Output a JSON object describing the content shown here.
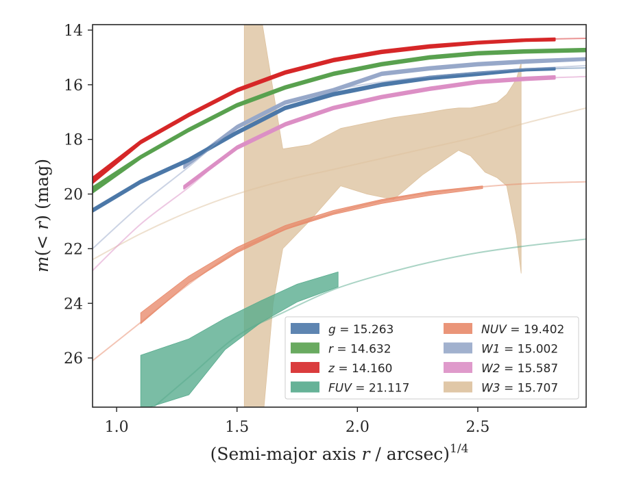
{
  "chart_data": {
    "type": "line",
    "title": "",
    "xlabel": "(Semi-major axis r / arcsec)^1/4",
    "ylabel": "m(< r) (mag)",
    "xlim": [
      0.9,
      2.95
    ],
    "ylim": [
      27.8,
      13.8
    ],
    "y_inverted": true,
    "grid": false,
    "legend_position": "lower-right",
    "x_ticks": [
      1.0,
      1.5,
      2.0,
      2.5
    ],
    "x_tick_labels": [
      "1.0",
      "1.5",
      "2.0",
      "2.5"
    ],
    "y_ticks": [
      14,
      16,
      18,
      20,
      22,
      24,
      26
    ],
    "y_tick_labels": [
      "14",
      "16",
      "18",
      "20",
      "22",
      "24",
      "26"
    ],
    "series": [
      {
        "name": "g",
        "value": "15.263",
        "color": "#4c78a8",
        "fit_x": [
          0.9,
          1.1,
          1.3,
          1.5,
          1.7,
          1.9,
          2.1,
          2.3,
          2.5,
          2.7,
          2.95
        ],
        "fit_y": [
          20.6,
          19.55,
          18.75,
          17.75,
          16.85,
          16.35,
          16.0,
          15.75,
          15.6,
          15.45,
          15.38
        ],
        "band_x": [
          0.9,
          1.1,
          1.3,
          1.5,
          1.7,
          1.9,
          2.1,
          2.3,
          2.5,
          2.7,
          2.82
        ],
        "band_lo": [
          20.55,
          19.5,
          18.7,
          17.7,
          16.8,
          16.3,
          15.95,
          15.7,
          15.55,
          15.42,
          15.38
        ],
        "band_hi": [
          20.65,
          19.6,
          18.8,
          17.8,
          16.9,
          16.4,
          16.05,
          15.8,
          15.65,
          15.48,
          15.45
        ]
      },
      {
        "name": "r",
        "value": "14.632",
        "color": "#59a14f",
        "fit_x": [
          0.9,
          1.1,
          1.3,
          1.5,
          1.7,
          1.9,
          2.1,
          2.3,
          2.5,
          2.7,
          2.95
        ],
        "fit_y": [
          19.85,
          18.65,
          17.65,
          16.75,
          16.1,
          15.6,
          15.25,
          15.0,
          14.85,
          14.78,
          14.72
        ],
        "band_x": [
          0.9,
          1.1,
          1.3,
          1.5,
          1.7,
          1.9,
          2.1,
          2.3,
          2.5,
          2.7,
          2.95
        ],
        "band_lo": [
          19.75,
          18.6,
          17.6,
          16.7,
          16.05,
          15.55,
          15.2,
          14.95,
          14.8,
          14.73,
          14.68
        ],
        "band_hi": [
          19.95,
          18.7,
          17.7,
          16.8,
          16.15,
          15.65,
          15.3,
          15.05,
          14.9,
          14.83,
          14.78
        ]
      },
      {
        "name": "z",
        "value": "14.160",
        "color": "#d62728",
        "fit_x": [
          0.9,
          1.1,
          1.3,
          1.5,
          1.7,
          1.9,
          2.1,
          2.3,
          2.5,
          2.7,
          2.95
        ],
        "fit_y": [
          19.5,
          18.1,
          17.1,
          16.2,
          15.55,
          15.1,
          14.8,
          14.6,
          14.45,
          14.35,
          14.3
        ],
        "band_x": [
          0.9,
          1.1,
          1.3,
          1.5,
          1.7,
          1.9,
          2.1,
          2.3,
          2.5,
          2.7,
          2.82
        ],
        "band_lo": [
          19.4,
          18.05,
          17.05,
          16.15,
          15.5,
          15.05,
          14.75,
          14.55,
          14.42,
          14.33,
          14.3
        ],
        "band_hi": [
          19.6,
          18.15,
          17.15,
          16.25,
          15.6,
          15.15,
          14.85,
          14.65,
          14.5,
          14.4,
          14.38
        ]
      },
      {
        "name": "FUV",
        "value": "21.117",
        "color": "#55aa8c",
        "fit_x": [
          1.1,
          1.3,
          1.5,
          1.7,
          1.9,
          2.1,
          2.3,
          2.5,
          2.7,
          2.95
        ],
        "fit_y": [
          28.2,
          26.7,
          25.2,
          24.3,
          23.5,
          22.95,
          22.5,
          22.15,
          21.9,
          21.65
        ],
        "band_x": [
          1.1,
          1.3,
          1.45,
          1.6,
          1.75,
          1.92
        ],
        "band_lo": [
          27.9,
          27.35,
          25.7,
          24.7,
          23.95,
          23.4
        ],
        "band_hi": [
          25.9,
          25.3,
          24.55,
          23.9,
          23.3,
          22.85
        ]
      },
      {
        "name": "NUV",
        "value": "19.402",
        "color": "#e8896a",
        "fit_x": [
          0.9,
          1.1,
          1.3,
          1.5,
          1.7,
          1.9,
          2.1,
          2.3,
          2.5,
          2.7,
          2.95
        ],
        "fit_y": [
          26.1,
          24.7,
          23.3,
          22.1,
          21.3,
          20.7,
          20.25,
          19.95,
          19.75,
          19.62,
          19.55
        ],
        "band_x": [
          1.1,
          1.3,
          1.5,
          1.7,
          1.9,
          2.1,
          2.3,
          2.52
        ],
        "band_lo": [
          24.75,
          23.25,
          22.15,
          21.3,
          20.75,
          20.35,
          20.05,
          19.8
        ],
        "band_hi": [
          24.35,
          23.0,
          21.95,
          21.15,
          20.6,
          20.2,
          19.9,
          19.7
        ]
      },
      {
        "name": "W1",
        "value": "15.002",
        "color": "#97a8c9",
        "fit_x": [
          0.9,
          1.1,
          1.3,
          1.5,
          1.7,
          1.9,
          2.1,
          2.3,
          2.5,
          2.7,
          2.95
        ],
        "fit_y": [
          22.0,
          20.4,
          19.0,
          17.55,
          16.65,
          16.2,
          15.9,
          15.7,
          15.55,
          15.42,
          15.3
        ],
        "band_x": [
          1.28,
          1.5,
          1.7,
          1.9,
          2.1,
          2.3,
          2.5,
          2.7,
          2.95
        ],
        "band_lo": [
          18.95,
          17.5,
          16.6,
          16.15,
          15.55,
          15.35,
          15.2,
          15.1,
          15.02
        ],
        "band_hi": [
          19.05,
          17.6,
          16.7,
          16.25,
          15.65,
          15.45,
          15.3,
          15.2,
          15.1
        ]
      },
      {
        "name": "W2",
        "value": "15.587",
        "color": "#dc8fc5",
        "fit_x": [
          0.9,
          1.1,
          1.3,
          1.5,
          1.7,
          1.9,
          2.1,
          2.3,
          2.5,
          2.7,
          2.95
        ],
        "fit_y": [
          22.8,
          21.1,
          19.75,
          18.3,
          17.45,
          16.85,
          16.45,
          16.15,
          15.9,
          15.78,
          15.7
        ],
        "band_x": [
          1.28,
          1.5,
          1.7,
          1.9,
          2.1,
          2.3,
          2.5,
          2.7,
          2.82
        ],
        "band_lo": [
          19.7,
          18.25,
          17.4,
          16.8,
          16.4,
          16.1,
          15.85,
          15.73,
          15.68
        ],
        "band_hi": [
          19.8,
          18.35,
          17.5,
          16.9,
          16.5,
          16.2,
          15.95,
          15.83,
          15.78
        ]
      },
      {
        "name": "W3",
        "value": "15.707",
        "color": "#ddc19d",
        "fit_x": [
          0.9,
          1.1,
          1.3,
          1.5,
          1.7,
          1.9,
          2.1,
          2.3,
          2.5,
          2.7,
          2.95
        ],
        "fit_y": [
          22.4,
          21.45,
          20.65,
          20.0,
          19.5,
          19.1,
          18.7,
          18.3,
          17.9,
          17.4,
          16.85
        ],
        "band_x": [
          1.53,
          1.6,
          1.65,
          1.69,
          1.8,
          1.93,
          2.04,
          2.15,
          2.27,
          2.37,
          2.42,
          2.47,
          2.53,
          2.58,
          2.62,
          2.66,
          2.68
        ],
        "band_lo": [
          29.0,
          29.0,
          24.0,
          22.0,
          21.0,
          19.7,
          20.0,
          20.2,
          19.3,
          18.7,
          18.4,
          18.6,
          19.2,
          19.4,
          19.7,
          21.5,
          22.9
        ],
        "band_hi": [
          13.5,
          13.5,
          16.2,
          18.35,
          18.2,
          17.6,
          17.4,
          17.2,
          17.05,
          16.9,
          16.85,
          16.85,
          16.75,
          16.65,
          16.35,
          15.8,
          15.2
        ]
      }
    ],
    "legend": [
      {
        "label": "g = 15.263",
        "color": "#4c78a8"
      },
      {
        "label": "NUV = 19.402",
        "color": "#e8896a"
      },
      {
        "label": "r = 14.632",
        "color": "#59a14f"
      },
      {
        "label": "W1 = 15.002",
        "color": "#97a8c9"
      },
      {
        "label": "z = 14.160",
        "color": "#d62728"
      },
      {
        "label": "W2 = 15.587",
        "color": "#dc8fc5"
      },
      {
        "label": "FUV = 21.117",
        "color": "#55aa8c"
      },
      {
        "label": "W3 = 15.707",
        "color": "#ddc19d"
      }
    ]
  }
}
